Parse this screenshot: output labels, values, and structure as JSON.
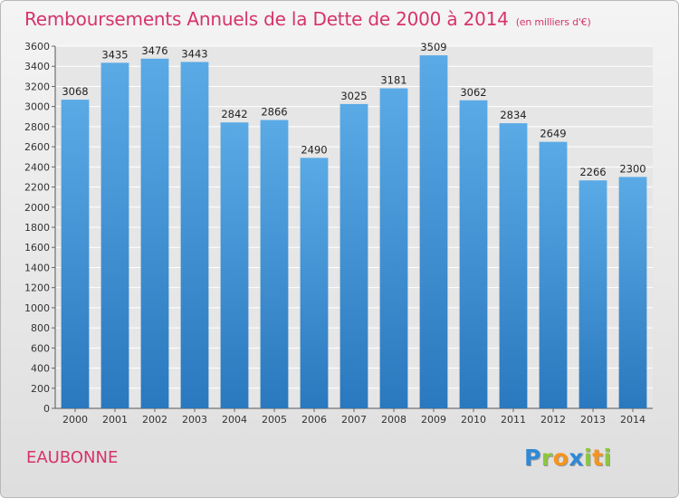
{
  "chart_data": {
    "type": "bar",
    "title": "Remboursements Annuels de la Dette de 2000 à 2014",
    "subtitle": "(en milliers d'€)",
    "categories": [
      "2000",
      "2001",
      "2002",
      "2003",
      "2004",
      "2005",
      "2006",
      "2007",
      "2008",
      "2009",
      "2010",
      "2011",
      "2012",
      "2013",
      "2014"
    ],
    "values": [
      3068,
      3435,
      3476,
      3443,
      2842,
      2866,
      2490,
      3025,
      3181,
      3509,
      3062,
      2834,
      2649,
      2266,
      2300
    ],
    "ylim": [
      0,
      3600
    ],
    "ytick_step": 200,
    "xlabel": "",
    "ylabel": "",
    "grid": true,
    "bar_color_top": "#5aaae6",
    "bar_color_bottom": "#2a78be"
  },
  "footer": {
    "commune": "EAUBONNE",
    "logo": [
      {
        "char": "P",
        "color": "#2f89d6"
      },
      {
        "char": "r",
        "color": "#8cc63f"
      },
      {
        "char": "o",
        "color": "#f7941d"
      },
      {
        "char": "x",
        "color": "#2f89d6"
      },
      {
        "char": "i",
        "color": "#8cc63f"
      },
      {
        "char": "t",
        "color": "#f7941d"
      },
      {
        "char": "i",
        "color": "#8cc63f"
      }
    ]
  }
}
